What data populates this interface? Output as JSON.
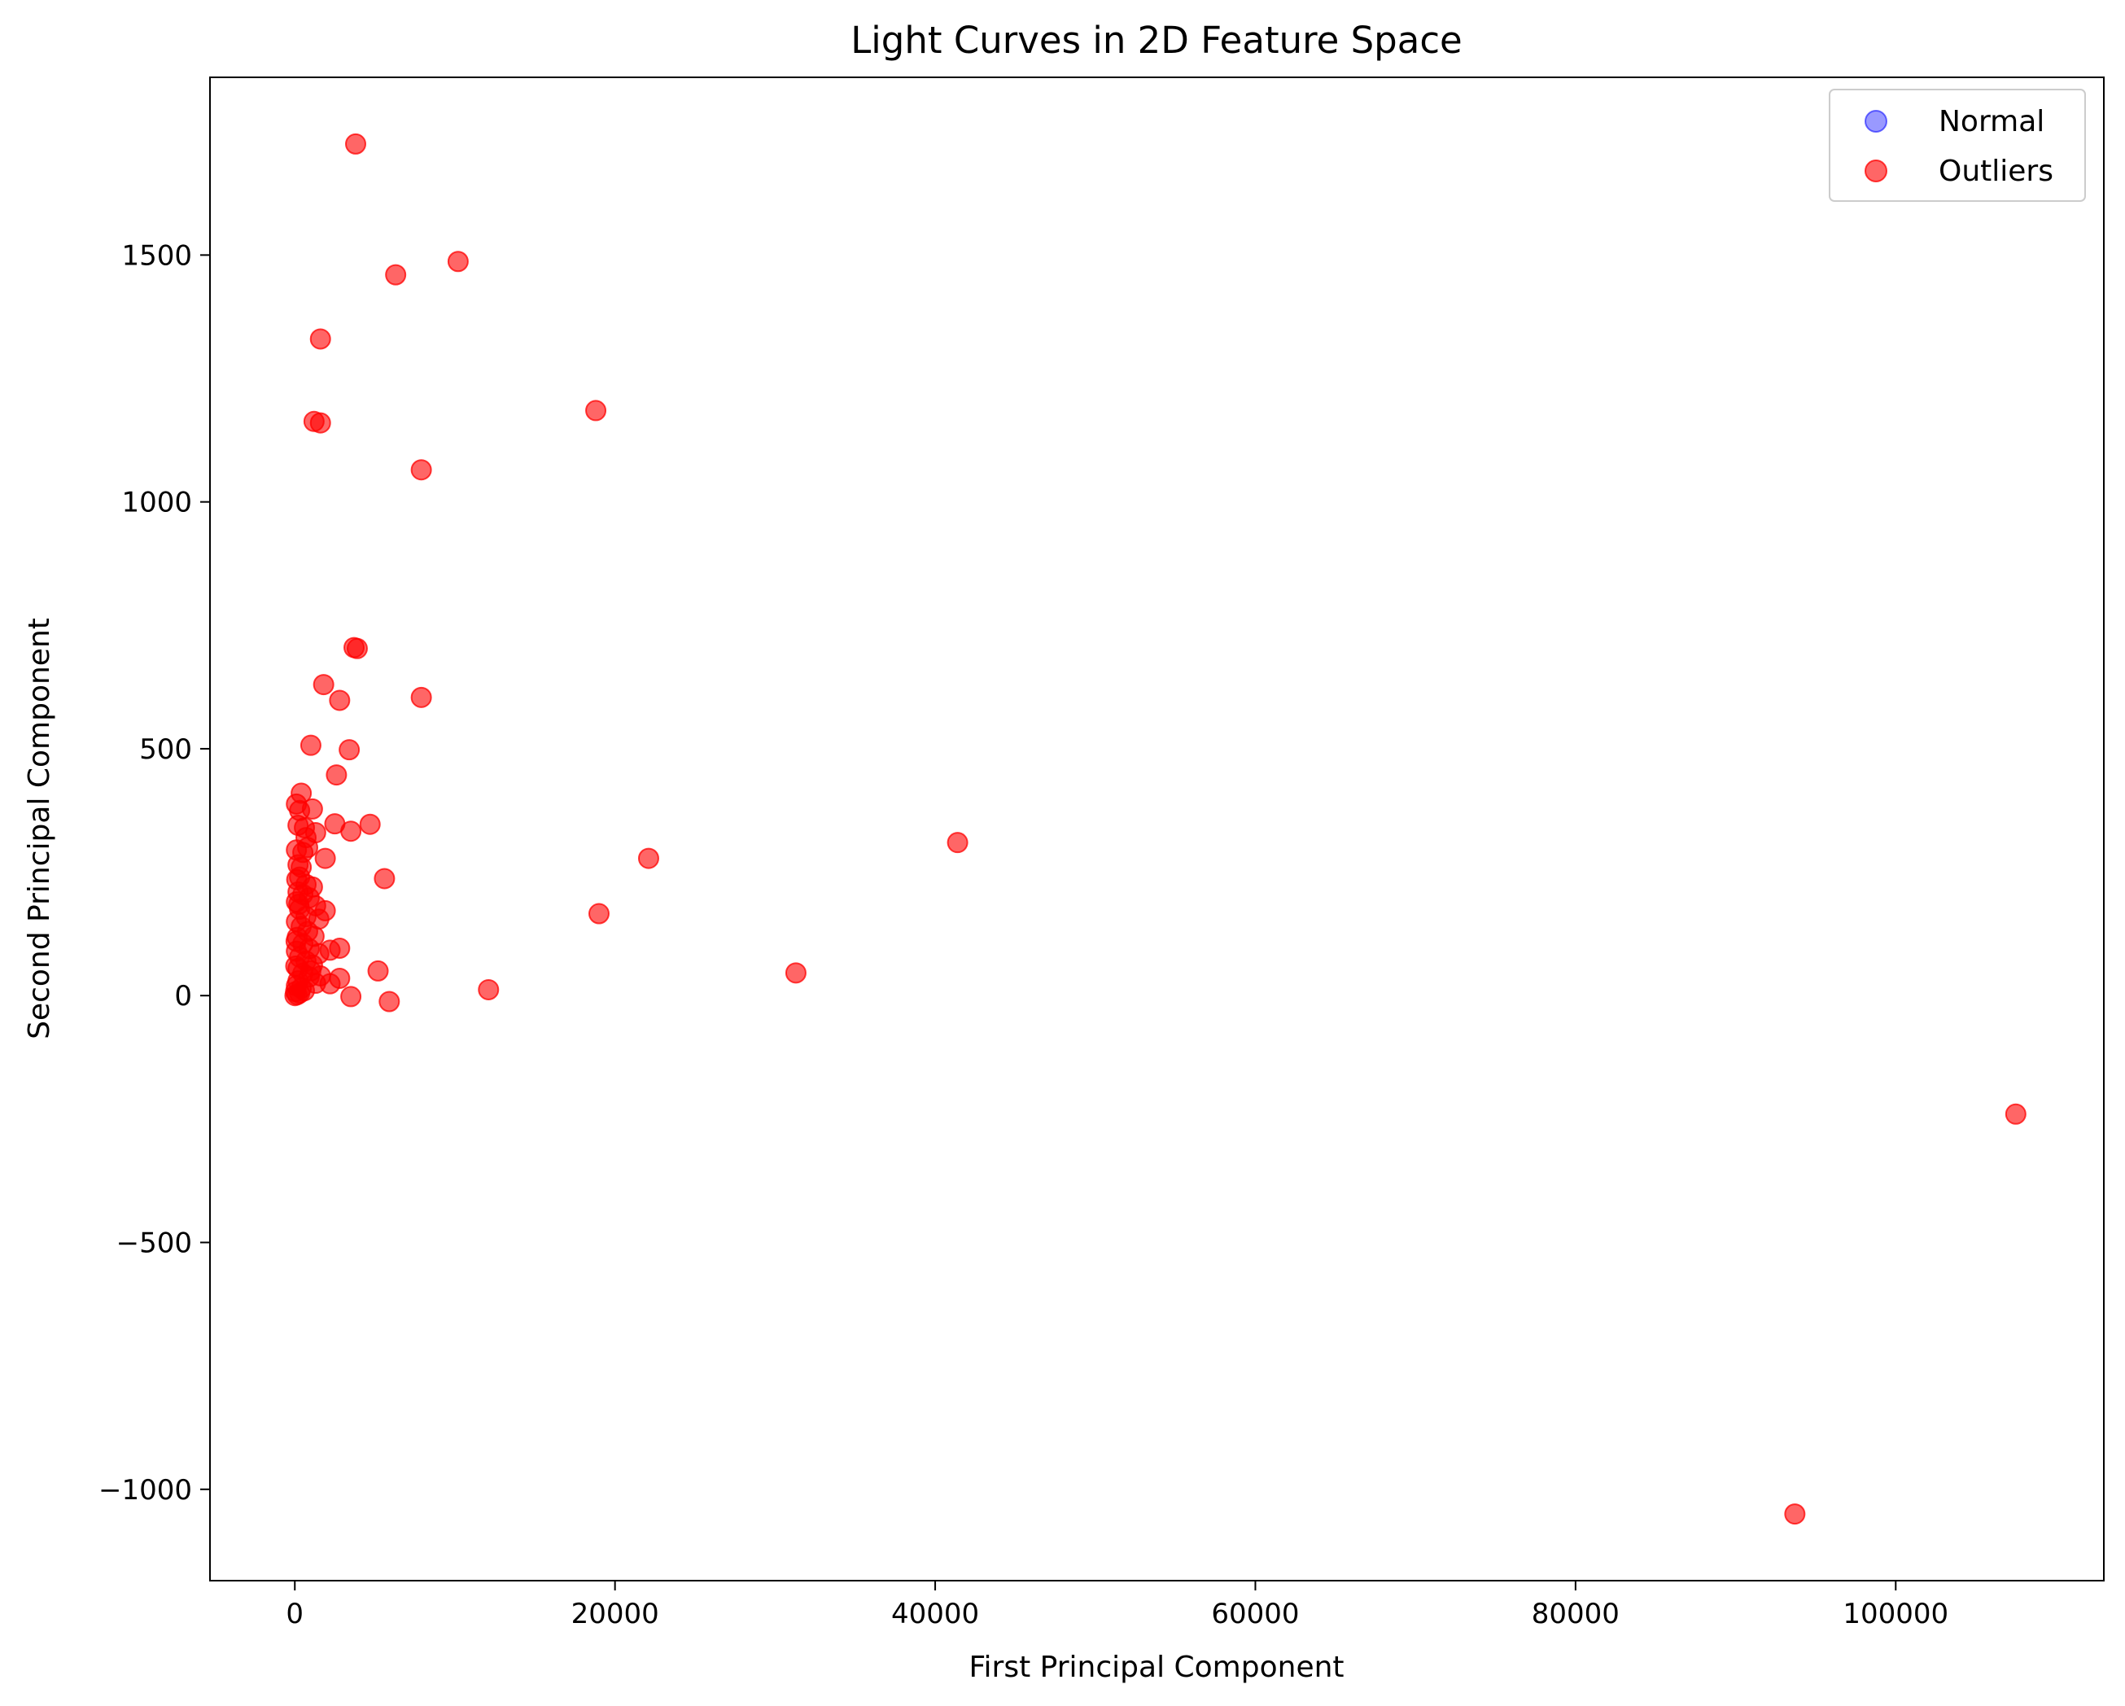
{
  "chart_data": {
    "type": "scatter",
    "title": "Light Curves in 2D Feature Space",
    "xlabel": "First Principal Component",
    "ylabel": "Second Principal Component",
    "xlim": [
      -5300,
      113000
    ],
    "ylim": [
      -1185,
      1860
    ],
    "xticks": [
      0,
      20000,
      40000,
      60000,
      80000,
      100000
    ],
    "yticks": [
      -1000,
      -500,
      0,
      500,
      1000,
      1500
    ],
    "ytick_labels": [
      "−1000",
      "−500",
      "0",
      "500",
      "1000",
      "1500"
    ],
    "grid": false,
    "legend_position": "top-right",
    "series": [
      {
        "name": "Normal",
        "color": "#0000ff",
        "alpha": 0.4,
        "points": []
      },
      {
        "name": "Outliers",
        "color": "#ff0000",
        "alpha": 0.6,
        "points": [
          [
            3800,
            1725
          ],
          [
            6300,
            1460
          ],
          [
            10200,
            1487
          ],
          [
            1600,
            1330
          ],
          [
            1200,
            1163
          ],
          [
            1600,
            1160
          ],
          [
            18800,
            1185
          ],
          [
            7900,
            1065
          ],
          [
            3700,
            705
          ],
          [
            3900,
            703
          ],
          [
            1800,
            630
          ],
          [
            2800,
            598
          ],
          [
            7900,
            604
          ],
          [
            1000,
            507
          ],
          [
            3400,
            498
          ],
          [
            2600,
            447
          ],
          [
            400,
            410
          ],
          [
            100,
            388
          ],
          [
            300,
            375
          ],
          [
            1100,
            378
          ],
          [
            4700,
            347
          ],
          [
            2500,
            348
          ],
          [
            3500,
            333
          ],
          [
            200,
            345
          ],
          [
            600,
            340
          ],
          [
            1300,
            330
          ],
          [
            41400,
            310
          ],
          [
            22100,
            278
          ],
          [
            1900,
            278
          ],
          [
            100,
            295
          ],
          [
            500,
            290
          ],
          [
            800,
            300
          ],
          [
            200,
            265
          ],
          [
            5600,
            237
          ],
          [
            300,
            240
          ],
          [
            700,
            225
          ],
          [
            1100,
            220
          ],
          [
            200,
            210
          ],
          [
            500,
            205
          ],
          [
            900,
            198
          ],
          [
            100,
            190
          ],
          [
            1300,
            182
          ],
          [
            1900,
            172
          ],
          [
            19000,
            166
          ],
          [
            300,
            175
          ],
          [
            700,
            160
          ],
          [
            1500,
            155
          ],
          [
            100,
            150
          ],
          [
            400,
            140
          ],
          [
            800,
            130
          ],
          [
            1200,
            120
          ],
          [
            150,
            118
          ],
          [
            500,
            105
          ],
          [
            2800,
            96
          ],
          [
            2200,
            92
          ],
          [
            900,
            95
          ],
          [
            1500,
            85
          ],
          [
            100,
            90
          ],
          [
            300,
            78
          ],
          [
            700,
            70
          ],
          [
            1100,
            62
          ],
          [
            200,
            55
          ],
          [
            5200,
            50
          ],
          [
            31300,
            46
          ],
          [
            500,
            45
          ],
          [
            1600,
            40
          ],
          [
            900,
            38
          ],
          [
            2800,
            35
          ],
          [
            200,
            30
          ],
          [
            1300,
            25
          ],
          [
            2200,
            24
          ],
          [
            100,
            20
          ],
          [
            400,
            15
          ],
          [
            12100,
            12
          ],
          [
            50,
            8
          ],
          [
            300,
            5
          ],
          [
            3500,
            -2
          ],
          [
            5900,
            -12
          ],
          [
            10,
            0
          ],
          [
            150,
            2
          ],
          [
            600,
            10
          ],
          [
            1000,
            50
          ],
          [
            80,
            110
          ],
          [
            60,
            60
          ],
          [
            250,
            185
          ],
          [
            120,
            235
          ],
          [
            400,
            260
          ],
          [
            700,
            320
          ],
          [
            107500,
            -240
          ],
          [
            93700,
            -1050
          ]
        ]
      }
    ]
  }
}
